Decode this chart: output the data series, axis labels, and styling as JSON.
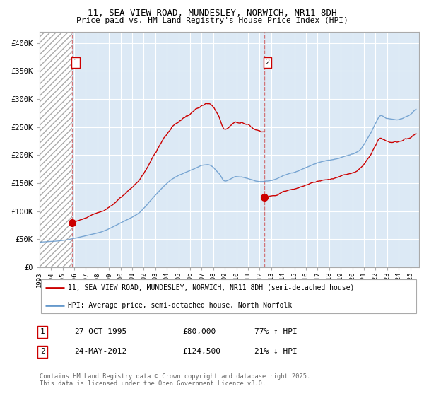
{
  "title_line1": "11, SEA VIEW ROAD, MUNDESLEY, NORWICH, NR11 8DH",
  "title_line2": "Price paid vs. HM Land Registry's House Price Index (HPI)",
  "background_color": "#ffffff",
  "plot_bg_color": "#dce9f5",
  "grid_color": "#ffffff",
  "line1_color": "#cc0000",
  "line2_color": "#6699cc",
  "xlim_start": 1993.0,
  "xlim_end": 2025.75,
  "ylim_min": 0,
  "ylim_max": 420000,
  "yticks": [
    0,
    50000,
    100000,
    150000,
    200000,
    250000,
    300000,
    350000,
    400000
  ],
  "ytick_labels": [
    "£0",
    "£50K",
    "£100K",
    "£150K",
    "£200K",
    "£250K",
    "£300K",
    "£350K",
    "£400K"
  ],
  "transaction1_x": 1995.82,
  "transaction1_y": 80000,
  "transaction2_x": 2012.38,
  "transaction2_y": 124500,
  "vline1_x": 1995.82,
  "vline2_x": 2012.38,
  "legend_line1": "11, SEA VIEW ROAD, MUNDESLEY, NORWICH, NR11 8DH (semi-detached house)",
  "legend_line2": "HPI: Average price, semi-detached house, North Norfolk",
  "table_row1": [
    "1",
    "27-OCT-1995",
    "£80,000",
    "77% ↑ HPI"
  ],
  "table_row2": [
    "2",
    "24-MAY-2012",
    "£124,500",
    "21% ↓ HPI"
  ],
  "footnote": "Contains HM Land Registry data © Crown copyright and database right 2025.\nThis data is licensed under the Open Government Licence v3.0."
}
